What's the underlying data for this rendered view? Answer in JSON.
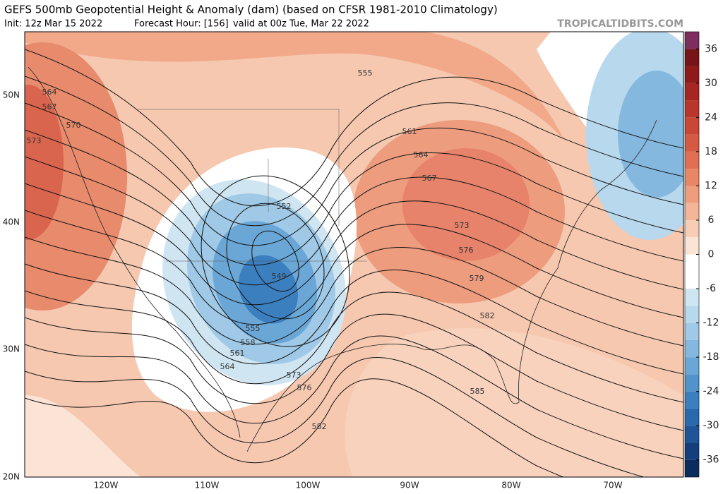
{
  "header": {
    "title": "GEFS 500mb Geopotential Height & Anomaly (dam) (based on CFSR 1981-2010 Climatology)",
    "init": "Init: 12z Mar 15 2022",
    "forecast_hour": "Forecast Hour: [156]",
    "valid": "valid at 00z Tue, Mar 22 2022",
    "source": "TROPICALTIDBITS.COM"
  },
  "axes": {
    "lat_labels": [
      "50N",
      "40N",
      "30N",
      "20N"
    ],
    "lon_labels": [
      "120W",
      "110W",
      "100W",
      "90W",
      "80W",
      "70W"
    ]
  },
  "contour_labels": [
    "564",
    "567",
    "570",
    "573",
    "555",
    "561",
    "564",
    "567",
    "573",
    "576",
    "579",
    "582",
    "585",
    "552",
    "549",
    "555",
    "558",
    "561",
    "564",
    "573",
    "576",
    "582"
  ],
  "colorbar": {
    "range": [
      -39,
      39
    ],
    "step": 3,
    "colors": [
      "#0b2d5e",
      "#143e7c",
      "#1f5497",
      "#2a69ad",
      "#3b7fbf",
      "#5393cc",
      "#6ba7d6",
      "#85b8de",
      "#9fc9e6",
      "#b8d8ed",
      "#d0e5f2",
      "#ffffff",
      "#ffffff",
      "#fbe3d6",
      "#f8cdb6",
      "#f4b598",
      "#ef9e7d",
      "#e98666",
      "#e06f53",
      "#d55a44",
      "#c84737",
      "#b8362c",
      "#a52622",
      "#8e1a1c",
      "#771417",
      "#7d2d5e"
    ],
    "ticks": [
      36,
      30,
      24,
      18,
      12,
      6,
      0,
      -6,
      -12,
      -18,
      -24,
      -30,
      -36
    ]
  }
}
